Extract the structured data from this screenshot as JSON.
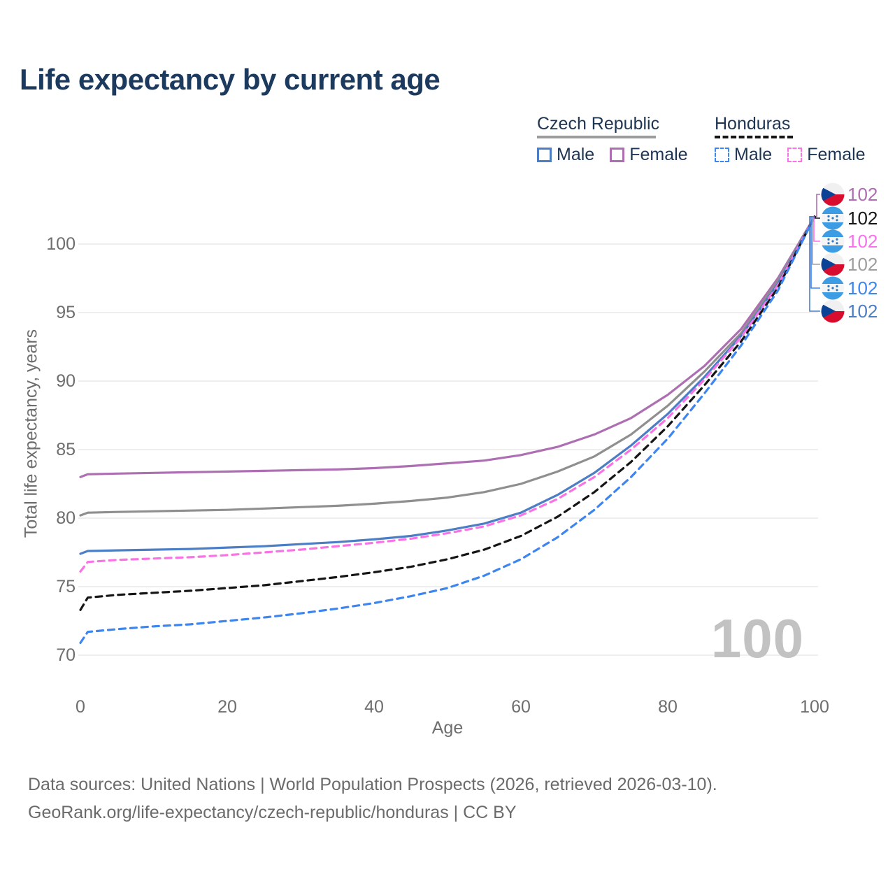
{
  "title": "Life expectancy by current age",
  "watermark": "100",
  "legend": {
    "groups": [
      {
        "label": "Czech Republic",
        "underline_color": "#9c9c9c",
        "underline_style": "solid",
        "items": [
          {
            "label": "Male",
            "color": "#4b7ec4",
            "dashed": false
          },
          {
            "label": "Female",
            "color": "#ad6fb2",
            "dashed": false
          }
        ]
      },
      {
        "label": "Honduras",
        "underline_color": "#151515",
        "underline_style": "dashed",
        "items": [
          {
            "label": "Male",
            "color": "#3d85f0",
            "dashed": true
          },
          {
            "label": "Female",
            "color": "#f973e6",
            "dashed": true
          }
        ]
      }
    ]
  },
  "chart_data": {
    "type": "line",
    "title": "Life expectancy by current age",
    "xlabel": "Age",
    "ylabel": "Total life expectancy, years",
    "xlim": [
      0,
      100
    ],
    "ylim": [
      69,
      103
    ],
    "xticks": [
      0,
      20,
      40,
      60,
      80,
      100
    ],
    "yticks": [
      70,
      75,
      80,
      85,
      90,
      95,
      100
    ],
    "grid": "horizontal-only",
    "legend_position": "top-right",
    "series": [
      {
        "id": "czech-female",
        "name": "Czech Republic Female",
        "color": "#ad6fb2",
        "dashed": false,
        "flag": "cz",
        "points": [
          [
            0,
            83.0
          ],
          [
            1,
            83.2
          ],
          [
            5,
            83.25
          ],
          [
            10,
            83.3
          ],
          [
            15,
            83.35
          ],
          [
            20,
            83.4
          ],
          [
            25,
            83.45
          ],
          [
            30,
            83.5
          ],
          [
            35,
            83.55
          ],
          [
            40,
            83.65
          ],
          [
            45,
            83.8
          ],
          [
            50,
            84.0
          ],
          [
            55,
            84.2
          ],
          [
            60,
            84.6
          ],
          [
            65,
            85.2
          ],
          [
            70,
            86.1
          ],
          [
            75,
            87.3
          ],
          [
            80,
            89.0
          ],
          [
            85,
            91.1
          ],
          [
            90,
            93.8
          ],
          [
            95,
            97.5
          ],
          [
            100,
            102
          ]
        ]
      },
      {
        "id": "czech-all",
        "name": "Czech Republic",
        "color": "#8f8f8f",
        "dashed": false,
        "flag": "cz",
        "points": [
          [
            0,
            80.2
          ],
          [
            1,
            80.4
          ],
          [
            5,
            80.45
          ],
          [
            10,
            80.5
          ],
          [
            15,
            80.55
          ],
          [
            20,
            80.6
          ],
          [
            25,
            80.7
          ],
          [
            30,
            80.8
          ],
          [
            35,
            80.9
          ],
          [
            40,
            81.05
          ],
          [
            45,
            81.25
          ],
          [
            50,
            81.5
          ],
          [
            55,
            81.9
          ],
          [
            60,
            82.5
          ],
          [
            65,
            83.4
          ],
          [
            70,
            84.5
          ],
          [
            75,
            86.1
          ],
          [
            80,
            88.2
          ],
          [
            85,
            90.7
          ],
          [
            90,
            93.5
          ],
          [
            95,
            97.3
          ],
          [
            100,
            102
          ]
        ]
      },
      {
        "id": "czech-male",
        "name": "Czech Republic Male",
        "color": "#4b7ec4",
        "dashed": false,
        "flag": "cz",
        "points": [
          [
            0,
            77.4
          ],
          [
            1,
            77.6
          ],
          [
            5,
            77.65
          ],
          [
            10,
            77.7
          ],
          [
            15,
            77.75
          ],
          [
            20,
            77.85
          ],
          [
            25,
            77.95
          ],
          [
            30,
            78.1
          ],
          [
            35,
            78.25
          ],
          [
            40,
            78.45
          ],
          [
            45,
            78.7
          ],
          [
            50,
            79.1
          ],
          [
            55,
            79.6
          ],
          [
            60,
            80.4
          ],
          [
            65,
            81.7
          ],
          [
            70,
            83.3
          ],
          [
            75,
            85.3
          ],
          [
            80,
            87.6
          ],
          [
            85,
            90.3
          ],
          [
            90,
            93.3
          ],
          [
            95,
            97.1
          ],
          [
            100,
            102
          ]
        ]
      },
      {
        "id": "honduras-female",
        "name": "Honduras Female",
        "color": "#f973e6",
        "dashed": true,
        "flag": "hn",
        "points": [
          [
            0,
            76.1
          ],
          [
            1,
            76.8
          ],
          [
            5,
            76.95
          ],
          [
            10,
            77.05
          ],
          [
            15,
            77.15
          ],
          [
            20,
            77.3
          ],
          [
            25,
            77.5
          ],
          [
            30,
            77.7
          ],
          [
            35,
            77.95
          ],
          [
            40,
            78.2
          ],
          [
            45,
            78.5
          ],
          [
            50,
            78.9
          ],
          [
            55,
            79.4
          ],
          [
            60,
            80.2
          ],
          [
            65,
            81.4
          ],
          [
            70,
            83.0
          ],
          [
            75,
            85.0
          ],
          [
            80,
            87.3
          ],
          [
            85,
            90.1
          ],
          [
            90,
            93.2
          ],
          [
            95,
            97.0
          ],
          [
            100,
            102
          ]
        ]
      },
      {
        "id": "honduras-all",
        "name": "Honduras",
        "color": "#151515",
        "dashed": true,
        "flag": "hn",
        "points": [
          [
            0,
            73.3
          ],
          [
            1,
            74.2
          ],
          [
            5,
            74.4
          ],
          [
            10,
            74.55
          ],
          [
            15,
            74.7
          ],
          [
            20,
            74.9
          ],
          [
            25,
            75.1
          ],
          [
            30,
            75.4
          ],
          [
            35,
            75.7
          ],
          [
            40,
            76.05
          ],
          [
            45,
            76.45
          ],
          [
            50,
            77.0
          ],
          [
            55,
            77.7
          ],
          [
            60,
            78.7
          ],
          [
            65,
            80.1
          ],
          [
            70,
            81.9
          ],
          [
            75,
            84.1
          ],
          [
            80,
            86.7
          ],
          [
            85,
            89.7
          ],
          [
            90,
            92.9
          ],
          [
            95,
            96.8
          ],
          [
            100,
            102
          ]
        ]
      },
      {
        "id": "honduras-male",
        "name": "Honduras Male",
        "color": "#3d85f0",
        "dashed": true,
        "flag": "hn",
        "points": [
          [
            0,
            70.9
          ],
          [
            1,
            71.7
          ],
          [
            5,
            71.9
          ],
          [
            10,
            72.1
          ],
          [
            15,
            72.25
          ],
          [
            20,
            72.5
          ],
          [
            25,
            72.75
          ],
          [
            30,
            73.05
          ],
          [
            35,
            73.4
          ],
          [
            40,
            73.8
          ],
          [
            45,
            74.3
          ],
          [
            50,
            74.9
          ],
          [
            55,
            75.8
          ],
          [
            60,
            77.0
          ],
          [
            65,
            78.6
          ],
          [
            70,
            80.6
          ],
          [
            75,
            83.0
          ],
          [
            80,
            85.8
          ],
          [
            85,
            89.1
          ],
          [
            90,
            92.6
          ],
          [
            95,
            96.6
          ],
          [
            100,
            102
          ]
        ]
      }
    ]
  },
  "end_labels": [
    {
      "flag": "cz",
      "value": "102",
      "color": "#ad6fb2",
      "series": "czech-female"
    },
    {
      "flag": "hn",
      "value": "102",
      "color": "#151515",
      "series": "honduras-all"
    },
    {
      "flag": "hn",
      "value": "102",
      "color": "#fa70ee",
      "series": "honduras-female"
    },
    {
      "flag": "cz",
      "value": "102",
      "color": "#9e9e9e",
      "series": "czech-all"
    },
    {
      "flag": "hn",
      "value": "102",
      "color": "#3d85f0",
      "series": "honduras-male"
    },
    {
      "flag": "cz",
      "value": "102",
      "color": "#4b7ec4",
      "series": "czech-male"
    }
  ],
  "footer": {
    "line1": "Data sources: United Nations | World Population Prospects (2026, retrieved 2026-03-10).",
    "line2": "GeoRank.org/life-expectancy/czech-republic/honduras | CC BY"
  }
}
